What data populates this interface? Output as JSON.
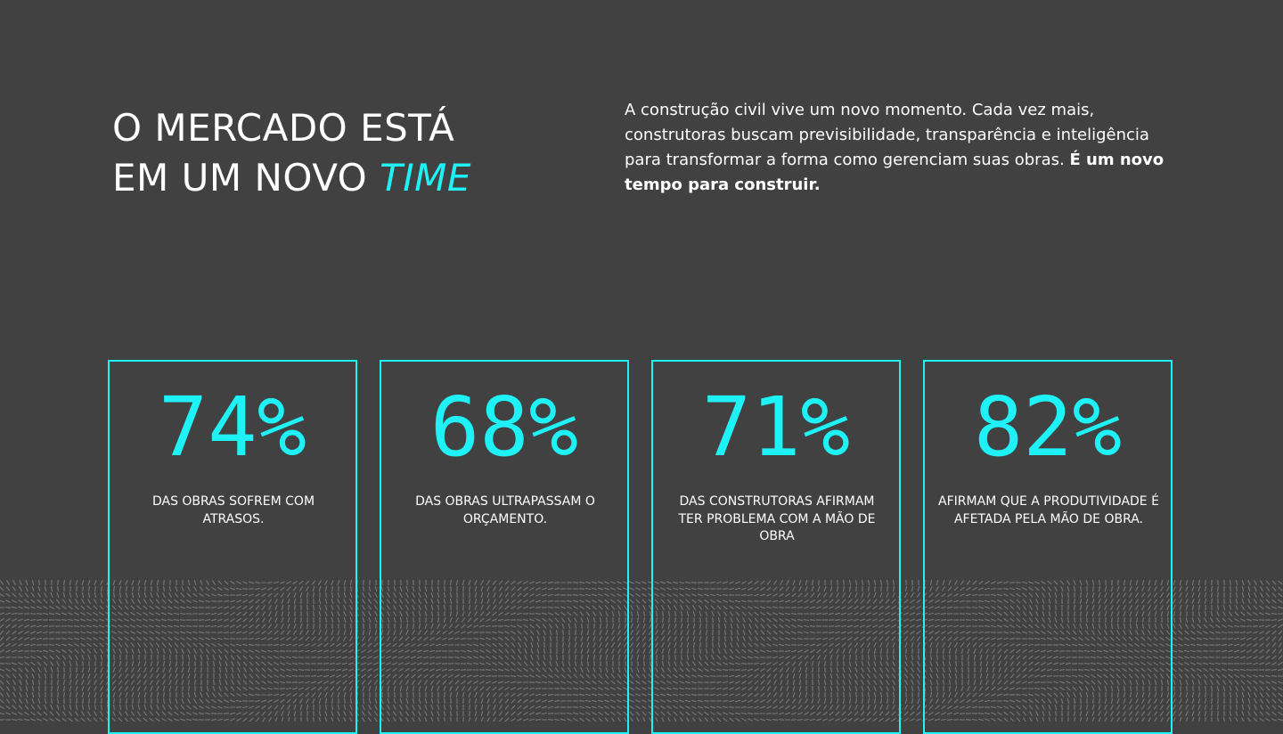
{
  "headline": {
    "line1": "O MERCADO ESTÁ",
    "line2": "EM UM NOVO ",
    "accent": "TIME"
  },
  "intro": {
    "text": "A construção civil vive um novo momento. Cada vez mais, construtoras buscam previsibilidade, transparência e inteligência para transformar a forma como gerenciam suas obras. ",
    "emphasis": "É um novo tempo para construir."
  },
  "stats": [
    {
      "value": "74%",
      "label": "DAS OBRAS SOFREM COM ATRASOS."
    },
    {
      "value": "68%",
      "label": "DAS OBRAS ULTRAPASSAM O ORÇAMENTO."
    },
    {
      "value": "71%",
      "label": "DAS CONSTRUTORAS AFIRMAM TER PROBLEMA COM A MÃO DE OBRA"
    },
    {
      "value": "82%",
      "label": "AFIRMAM QUE A PRODUTIVIDADE É AFETADA PELA MÃO DE OBRA."
    }
  ],
  "colors": {
    "background": "#414141",
    "accent": "#1ef2f7",
    "text": "#ffffff",
    "pattern": "#8a8a8a"
  }
}
